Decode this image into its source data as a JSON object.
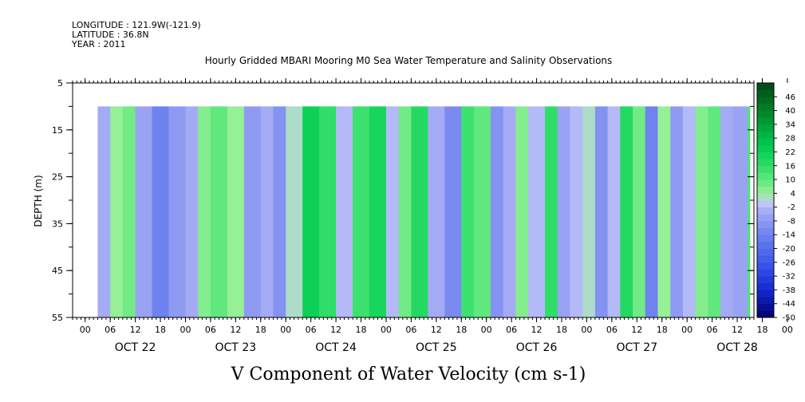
{
  "header": {
    "longitude": "LONGITUDE : 121.9W(-121.9)",
    "latitude": "LATITUDE : 36.8N",
    "year": "YEAR : 2011"
  },
  "chart_data": {
    "type": "heatmap",
    "title": "Hourly Gridded MBARI Mooring M0 Sea Water Temperature and Salinity Observations",
    "xlabel": "V Component of Water Velocity (cm s-1)",
    "ylabel": "DEPTH (m)",
    "ylim": [
      5,
      55
    ],
    "y_ticks": [
      5,
      15,
      25,
      35,
      45,
      55
    ],
    "hour_ticks": [
      "00",
      "06",
      "12",
      "18",
      "00",
      "06",
      "12",
      "18",
      "00",
      "06",
      "12",
      "18",
      "00",
      "06",
      "12",
      "18",
      "00",
      "06",
      "12",
      "18",
      "00",
      "06",
      "12",
      "18",
      "00",
      "06",
      "12",
      "18",
      "00",
      "06",
      "12",
      "18"
    ],
    "day_labels": [
      "OCT 22",
      "OCT 23",
      "OCT 24",
      "OCT 25",
      "OCT 26",
      "OCT 27",
      "OCT 28"
    ],
    "x_range_hours": [
      -3,
      160
    ],
    "data_start_hour": 3,
    "data_end_hour": 158.5,
    "data_depth_range": [
      10,
      55
    ],
    "colorbar": {
      "labels": [
        "46",
        "40",
        "34",
        "28",
        "22",
        "16",
        "10",
        "4",
        "-2",
        "-8",
        "-14",
        "-20",
        "-26",
        "-32",
        "-38",
        "-44",
        "-50"
      ],
      "min": -50,
      "max": 52,
      "step": 3
    },
    "bands": [
      {
        "t": 3,
        "v": -4
      },
      {
        "t": 6,
        "v": 4
      },
      {
        "t": 9,
        "v": 8
      },
      {
        "t": 12,
        "v": -6
      },
      {
        "t": 16,
        "v": -14
      },
      {
        "t": 20,
        "v": -8
      },
      {
        "t": 24,
        "v": -4
      },
      {
        "t": 27,
        "v": 6
      },
      {
        "t": 30,
        "v": 10
      },
      {
        "t": 34,
        "v": 4
      },
      {
        "t": 38,
        "v": -8
      },
      {
        "t": 42,
        "v": -4
      },
      {
        "t": 45,
        "v": -10
      },
      {
        "t": 48,
        "v": 2
      },
      {
        "t": 52,
        "v": 22
      },
      {
        "t": 56,
        "v": 16
      },
      {
        "t": 60,
        "v": -2
      },
      {
        "t": 64,
        "v": 14
      },
      {
        "t": 68,
        "v": 20
      },
      {
        "t": 72,
        "v": -2
      },
      {
        "t": 75,
        "v": 8
      },
      {
        "t": 78,
        "v": 18
      },
      {
        "t": 82,
        "v": -4
      },
      {
        "t": 86,
        "v": -12
      },
      {
        "t": 90,
        "v": 14
      },
      {
        "t": 93,
        "v": 10
      },
      {
        "t": 97,
        "v": -10
      },
      {
        "t": 100,
        "v": -4
      },
      {
        "t": 103,
        "v": 6
      },
      {
        "t": 106,
        "v": -2
      },
      {
        "t": 110,
        "v": 16
      },
      {
        "t": 113,
        "v": -6
      },
      {
        "t": 116,
        "v": -2
      },
      {
        "t": 119,
        "v": 2
      },
      {
        "t": 122,
        "v": -10
      },
      {
        "t": 125,
        "v": -2
      },
      {
        "t": 128,
        "v": 18
      },
      {
        "t": 131,
        "v": 8
      },
      {
        "t": 134,
        "v": -14
      },
      {
        "t": 137,
        "v": 4
      },
      {
        "t": 140,
        "v": -8
      },
      {
        "t": 143,
        "v": -2
      },
      {
        "t": 146,
        "v": 6
      },
      {
        "t": 149,
        "v": 10
      },
      {
        "t": 152,
        "v": -4
      },
      {
        "t": 155,
        "v": -6
      },
      {
        "t": 158.5,
        "v": 12
      }
    ]
  }
}
